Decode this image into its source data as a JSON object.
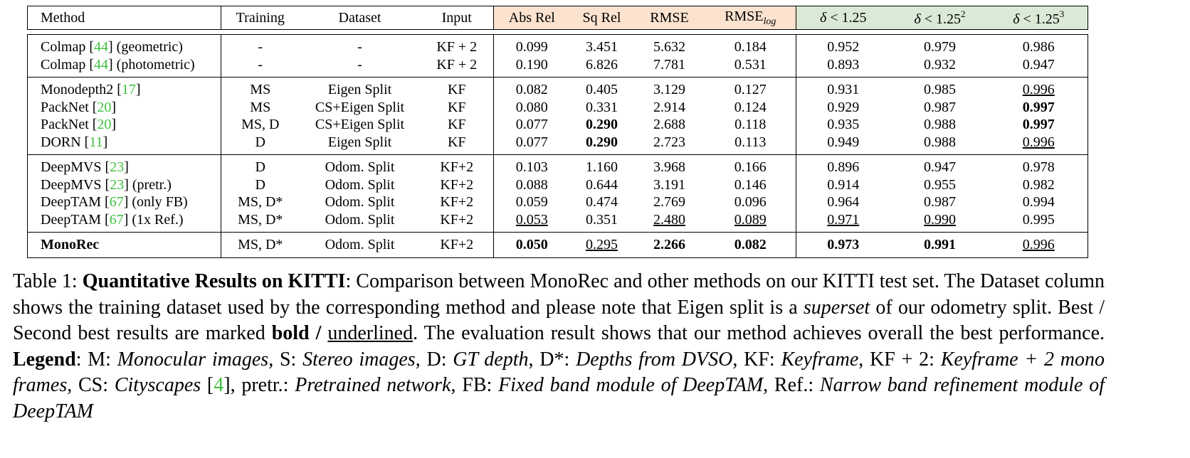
{
  "table": {
    "header": [
      "Method",
      "Training",
      "Dataset",
      "Input",
      "Abs Rel",
      "Sq Rel",
      "RMSE",
      [
        {
          "text": "RMSE",
          "style": "normal"
        },
        {
          "text": "log",
          "style": "sub"
        }
      ],
      [
        {
          "text": "δ",
          "style": "italic"
        },
        {
          "text": " < 1.25",
          "style": "normal"
        }
      ],
      [
        {
          "text": "δ",
          "style": "italic"
        },
        {
          "text": " < 1.25",
          "style": "normal"
        },
        {
          "text": "2",
          "style": "sup"
        }
      ],
      [
        {
          "text": "δ",
          "style": "italic"
        },
        {
          "text": " < 1.25",
          "style": "normal"
        },
        {
          "text": "3",
          "style": "sup"
        }
      ]
    ],
    "groups": [
      [
        [
          [
            {
              "text": "Colmap [",
              "style": "normal"
            },
            {
              "text": "44",
              "style": "cite"
            },
            {
              "text": "] (geometric)",
              "style": "normal"
            }
          ],
          "-",
          "-",
          "KF + 2",
          "0.099",
          "3.451",
          "5.632",
          "0.184",
          "0.952",
          "0.979",
          "0.986"
        ],
        [
          [
            {
              "text": "Colmap [",
              "style": "normal"
            },
            {
              "text": "44",
              "style": "cite"
            },
            {
              "text": "] (photometric)",
              "style": "normal"
            }
          ],
          "-",
          "-",
          "KF + 2",
          "0.190",
          "6.826",
          "7.781",
          "0.531",
          "0.893",
          "0.932",
          "0.947"
        ]
      ],
      [
        [
          [
            {
              "text": "Monodepth2 [",
              "style": "normal"
            },
            {
              "text": "17",
              "style": "cite"
            },
            {
              "text": "]",
              "style": "normal"
            }
          ],
          "MS",
          "Eigen Split",
          "KF",
          "0.082",
          "0.405",
          "3.129",
          "0.127",
          "0.931",
          "0.985",
          [
            {
              "text": "0.996",
              "style": "underline"
            }
          ]
        ],
        [
          [
            {
              "text": "PackNet [",
              "style": "normal"
            },
            {
              "text": "20",
              "style": "cite"
            },
            {
              "text": "]",
              "style": "normal"
            }
          ],
          "MS",
          "CS+Eigen Split",
          "KF",
          "0.080",
          "0.331",
          "2.914",
          "0.124",
          "0.929",
          "0.987",
          [
            {
              "text": "0.997",
              "style": "bold"
            }
          ]
        ],
        [
          [
            {
              "text": "PackNet [",
              "style": "normal"
            },
            {
              "text": "20",
              "style": "cite"
            },
            {
              "text": "]",
              "style": "normal"
            }
          ],
          "MS, D",
          "CS+Eigen Split",
          "KF",
          "0.077",
          [
            {
              "text": "0.290",
              "style": "bold"
            }
          ],
          "2.688",
          "0.118",
          "0.935",
          "0.988",
          [
            {
              "text": "0.997",
              "style": "bold"
            }
          ]
        ],
        [
          [
            {
              "text": "DORN [",
              "style": "normal"
            },
            {
              "text": "11",
              "style": "cite"
            },
            {
              "text": "]",
              "style": "normal"
            }
          ],
          "D",
          "Eigen Split",
          "KF",
          "0.077",
          [
            {
              "text": "0.290",
              "style": "bold"
            }
          ],
          "2.723",
          "0.113",
          "0.949",
          "0.988",
          [
            {
              "text": "0.996",
              "style": "underline"
            }
          ]
        ]
      ],
      [
        [
          [
            {
              "text": "DeepMVS [",
              "style": "normal"
            },
            {
              "text": "23",
              "style": "cite"
            },
            {
              "text": "]",
              "style": "normal"
            }
          ],
          "D",
          "Odom. Split",
          "KF+2",
          "0.103",
          "1.160",
          "3.968",
          "0.166",
          "0.896",
          "0.947",
          "0.978"
        ],
        [
          [
            {
              "text": "DeepMVS [",
              "style": "normal"
            },
            {
              "text": "23",
              "style": "cite"
            },
            {
              "text": "] (pretr.)",
              "style": "normal"
            }
          ],
          "D",
          "Odom. Split",
          "KF+2",
          "0.088",
          "0.644",
          "3.191",
          "0.146",
          "0.914",
          "0.955",
          "0.982"
        ],
        [
          [
            {
              "text": "DeepTAM [",
              "style": "normal"
            },
            {
              "text": "67",
              "style": "cite"
            },
            {
              "text": "] (only FB)",
              "style": "normal"
            }
          ],
          "MS, D*",
          "Odom. Split",
          "KF+2",
          "0.059",
          "0.474",
          "2.769",
          "0.096",
          "0.964",
          "0.987",
          "0.994"
        ],
        [
          [
            {
              "text": "DeepTAM [",
              "style": "normal"
            },
            {
              "text": "67",
              "style": "cite"
            },
            {
              "text": "] (1x Ref.)",
              "style": "normal"
            }
          ],
          "MS, D*",
          "Odom. Split",
          "KF+2",
          [
            {
              "text": "0.053",
              "style": "underline"
            }
          ],
          "0.351",
          [
            {
              "text": "2.480",
              "style": "underline"
            }
          ],
          [
            {
              "text": "0.089",
              "style": "underline"
            }
          ],
          [
            {
              "text": "0.971",
              "style": "underline"
            }
          ],
          [
            {
              "text": "0.990",
              "style": "underline"
            }
          ],
          "0.995"
        ]
      ],
      [
        [
          [
            {
              "text": "MonoRec",
              "style": "bold"
            }
          ],
          "MS, D*",
          "Odom. Split",
          "KF+2",
          [
            {
              "text": "0.050",
              "style": "bold"
            }
          ],
          [
            {
              "text": "0.295",
              "style": "underline"
            }
          ],
          [
            {
              "text": "2.266",
              "style": "bold"
            }
          ],
          [
            {
              "text": "0.082",
              "style": "bold"
            }
          ],
          [
            {
              "text": "0.973",
              "style": "bold"
            }
          ],
          [
            {
              "text": "0.991",
              "style": "bold"
            }
          ],
          [
            {
              "text": "0.996",
              "style": "underline"
            }
          ]
        ]
      ]
    ]
  },
  "caption": [
    {
      "text": "Table 1: ",
      "style": "normal"
    },
    {
      "text": "Quantitative Results on KITTI",
      "style": "bold"
    },
    {
      "text": ": Comparison between MonoRec and other methods on our KITTI test set. The Dataset column shows the training dataset used by the corresponding method and please note that Eigen split is a ",
      "style": "normal"
    },
    {
      "text": "superset",
      "style": "italic"
    },
    {
      "text": " of our odometry split. Best / Second best results are marked ",
      "style": "normal"
    },
    {
      "text": "bold /",
      "style": "bold"
    },
    {
      "text": " ",
      "style": "normal"
    },
    {
      "text": "underlined",
      "style": "underline"
    },
    {
      "text": ". The evaluation result shows that our method achieves overall the best performance. ",
      "style": "normal"
    },
    {
      "text": "Legend",
      "style": "bold"
    },
    {
      "text": ": M: ",
      "style": "normal"
    },
    {
      "text": "Monocular images",
      "style": "italic"
    },
    {
      "text": ", S: ",
      "style": "normal"
    },
    {
      "text": "Stereo images",
      "style": "italic"
    },
    {
      "text": ", D: ",
      "style": "normal"
    },
    {
      "text": "GT depth",
      "style": "italic"
    },
    {
      "text": ", D*: ",
      "style": "normal"
    },
    {
      "text": "Depths from DVSO",
      "style": "italic"
    },
    {
      "text": ", KF: ",
      "style": "normal"
    },
    {
      "text": "Keyframe",
      "style": "italic"
    },
    {
      "text": ", KF + 2: ",
      "style": "normal"
    },
    {
      "text": "Keyframe + 2 mono frames",
      "style": "italic"
    },
    {
      "text": ", CS: ",
      "style": "normal"
    },
    {
      "text": "Cityscapes",
      "style": "italic"
    },
    {
      "text": " [",
      "style": "normal"
    },
    {
      "text": "4",
      "style": "cite"
    },
    {
      "text": "], pretr.: ",
      "style": "normal"
    },
    {
      "text": "Pretrained network",
      "style": "italic"
    },
    {
      "text": ", FB: ",
      "style": "normal"
    },
    {
      "text": "Fixed band module of DeepTAM",
      "style": "italic"
    },
    {
      "text": ", Ref.: ",
      "style": "normal"
    },
    {
      "text": "Narrow band refinement module of DeepTAM",
      "style": "italic"
    }
  ]
}
